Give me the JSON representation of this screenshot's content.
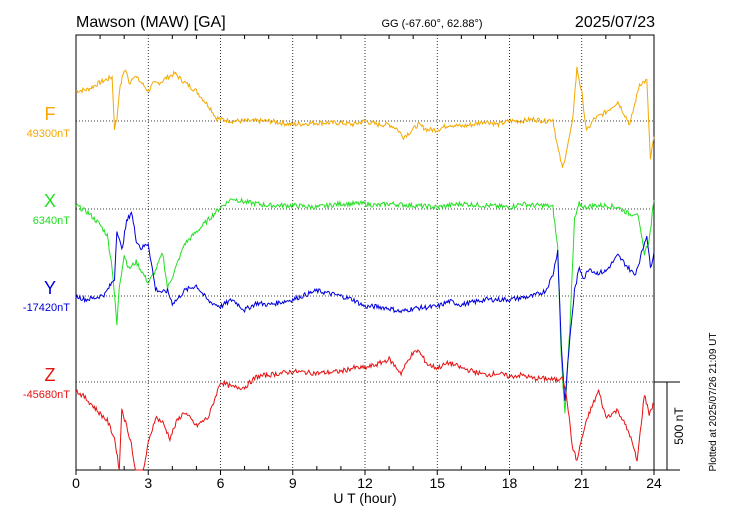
{
  "header": {
    "station": "Mawson (MAW)  [GA]",
    "coords": "GG (-67.60°,  62.88°)",
    "date": "2025/07/23"
  },
  "footer": {
    "plotted": "Plotted at 2025/07/26 21:09 UT"
  },
  "chart_data": {
    "type": "line",
    "xlabel": "U T (hour)",
    "xlim": [
      0,
      24
    ],
    "xticks": [
      "0",
      "3",
      "6",
      "9",
      "12",
      "15",
      "18",
      "21",
      "24"
    ],
    "scale_bar": {
      "label": "500 nT",
      "value_nT": 500
    },
    "grid": "dotted vertical lines every 3 h, dotted baseline per component",
    "series": [
      {
        "name": "F",
        "baseline_label": "49300nT",
        "baseline_nT": 49300,
        "color": "#f5a800",
        "x": [
          0,
          0.5,
          1.0,
          1.5,
          1.6,
          1.7,
          1.8,
          2.0,
          2.1,
          2.2,
          2.4,
          2.7,
          3.0,
          3.2,
          3.5,
          3.8,
          4.1,
          4.5,
          5.0,
          5.3,
          5.6,
          5.8,
          6.0,
          6.5,
          7.0,
          8.0,
          9.0,
          10.0,
          11.0,
          11.5,
          12.0,
          12.5,
          13.0,
          13.3,
          13.6,
          13.9,
          14.2,
          14.6,
          15.0,
          15.5,
          16.0,
          16.5,
          17.0,
          17.5,
          18.0,
          18.5,
          19.0,
          19.5,
          19.8,
          20.0,
          20.2,
          20.4,
          20.6,
          20.8,
          21.0,
          21.2,
          21.5,
          22.0,
          22.5,
          23.0,
          23.4,
          23.7,
          23.85,
          24.0
        ],
        "y": [
          170,
          180,
          220,
          250,
          -40,
          10,
          170,
          290,
          280,
          210,
          260,
          220,
          170,
          210,
          220,
          250,
          270,
          220,
          170,
          120,
          70,
          20,
          10,
          0,
          0,
          0,
          -20,
          -10,
          -10,
          -20,
          0,
          -20,
          -20,
          -40,
          -90,
          -60,
          -20,
          -50,
          -50,
          -20,
          -30,
          -20,
          0,
          -20,
          0,
          0,
          10,
          0,
          10,
          -150,
          -270,
          -150,
          -20,
          300,
          160,
          -60,
          10,
          50,
          110,
          -20,
          210,
          230,
          -220,
          -90
        ]
      },
      {
        "name": "X",
        "baseline_label": "6340nT",
        "baseline_nT": 6340,
        "color": "#22e022",
        "x": [
          0,
          0.5,
          1.0,
          1.3,
          1.5,
          1.7,
          1.8,
          2.0,
          2.2,
          2.5,
          2.8,
          3.0,
          3.3,
          3.6,
          3.8,
          4.1,
          4.5,
          5.0,
          5.5,
          6.0,
          6.5,
          7.0,
          7.5,
          8.0,
          9.0,
          10.0,
          11.0,
          12.0,
          12.5,
          13.0,
          14.0,
          15.0,
          16.0,
          17.0,
          18.0,
          18.5,
          19.0,
          19.5,
          19.8,
          20.0,
          20.15,
          20.3,
          20.5,
          20.7,
          20.9,
          21.1,
          21.5,
          22.0,
          22.5,
          23.0,
          23.3,
          23.6,
          23.8,
          24.0
        ],
        "y": [
          20,
          -20,
          -90,
          -150,
          -330,
          -660,
          -440,
          -260,
          -340,
          -300,
          -370,
          -420,
          -350,
          -250,
          -450,
          -350,
          -200,
          -130,
          -60,
          10,
          60,
          40,
          30,
          20,
          20,
          10,
          30,
          30,
          20,
          30,
          20,
          10,
          30,
          20,
          10,
          30,
          20,
          20,
          10,
          -220,
          -850,
          -1150,
          -700,
          -60,
          30,
          10,
          20,
          20,
          10,
          -30,
          -20,
          -250,
          -180,
          50
        ]
      },
      {
        "name": "Y",
        "baseline_label": "-17420nT",
        "baseline_nT": -17420,
        "color": "#0000dd",
        "x": [
          0,
          0.4,
          0.8,
          1.2,
          1.6,
          1.7,
          1.9,
          2.1,
          2.3,
          2.5,
          2.7,
          3.0,
          3.3,
          3.6,
          3.8,
          4.0,
          4.2,
          4.5,
          5.0,
          5.5,
          6.0,
          6.5,
          7.0,
          7.5,
          8.0,
          9.0,
          10.0,
          11.0,
          11.5,
          12.0,
          12.5,
          13.0,
          13.5,
          14.0,
          15.0,
          15.5,
          16.0,
          17.0,
          18.0,
          19.0,
          19.5,
          19.8,
          20.0,
          20.15,
          20.3,
          20.5,
          20.7,
          20.9,
          21.1,
          21.3,
          21.6,
          22.0,
          22.5,
          23.0,
          23.2,
          23.4,
          23.7,
          23.85,
          24.0
        ],
        "y": [
          0,
          -20,
          -10,
          10,
          100,
          380,
          260,
          420,
          480,
          320,
          270,
          300,
          40,
          20,
          30,
          -40,
          -20,
          30,
          60,
          -30,
          -60,
          -20,
          -80,
          -40,
          -50,
          -20,
          30,
          0,
          -20,
          -60,
          -60,
          -70,
          -90,
          -70,
          -60,
          -30,
          -50,
          -20,
          -20,
          0,
          30,
          120,
          260,
          -280,
          -600,
          -250,
          30,
          160,
          100,
          160,
          130,
          140,
          230,
          150,
          120,
          200,
          350,
          160,
          250
        ]
      },
      {
        "name": "Z",
        "baseline_label": "-45680nT",
        "baseline_nT": -45680,
        "color": "#e81010",
        "x": [
          0,
          0.3,
          0.6,
          1.0,
          1.3,
          1.6,
          1.8,
          1.9,
          2.1,
          2.3,
          2.6,
          2.8,
          3.0,
          3.3,
          3.6,
          3.9,
          4.2,
          4.5,
          5.0,
          5.5,
          6.0,
          6.5,
          7.0,
          7.5,
          8.0,
          9.0,
          10.0,
          11.0,
          11.5,
          12.0,
          12.5,
          13.0,
          13.5,
          13.9,
          14.2,
          14.6,
          15.0,
          15.5,
          16.0,
          16.5,
          17.0,
          17.5,
          18.0,
          18.5,
          19.0,
          19.5,
          20.0,
          20.2,
          20.4,
          20.6,
          20.8,
          21.0,
          21.3,
          21.7,
          22.0,
          22.5,
          23.0,
          23.3,
          23.6,
          23.8,
          24.0
        ],
        "y": [
          -50,
          -80,
          -120,
          -180,
          -220,
          -320,
          -500,
          -150,
          -250,
          -350,
          -650,
          -500,
          -350,
          -200,
          -230,
          -320,
          -220,
          -170,
          -250,
          -200,
          0,
          -30,
          -30,
          30,
          40,
          60,
          50,
          60,
          80,
          80,
          100,
          130,
          50,
          150,
          180,
          100,
          80,
          110,
          80,
          60,
          40,
          50,
          30,
          40,
          20,
          20,
          10,
          40,
          -110,
          -360,
          -450,
          -320,
          -180,
          -50,
          -200,
          -160,
          -300,
          -450,
          -70,
          -180,
          -120
        ]
      }
    ]
  }
}
